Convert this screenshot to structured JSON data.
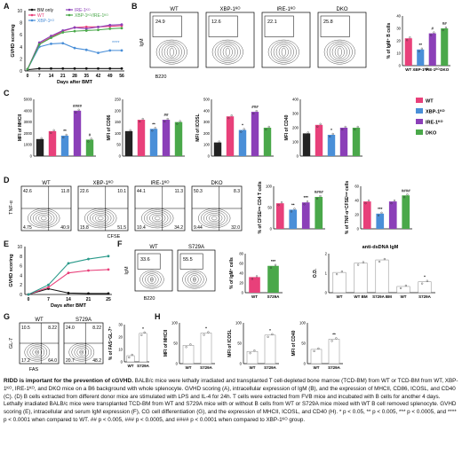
{
  "panels": {
    "A": {
      "letter": "A",
      "ylabel": "GVHD scoring",
      "xlabel": "Days after BMT",
      "legend": [
        "BM only",
        "WT",
        "XBP-1ᴷᴼ",
        "IRE-1ᴷᴼ",
        "XBP-1ᴷᴼ/IRE-1ᴷᴼ"
      ],
      "sig": "****",
      "chart_data": {
        "type": "line",
        "x": [
          0,
          7,
          14,
          21,
          28,
          35,
          42,
          49,
          56
        ],
        "ylim": [
          0,
          10
        ],
        "series": [
          {
            "name": "BM only",
            "values": [
              0.2,
              0.4,
              0.4,
              0.4,
              0.4,
              0.4,
              0.4,
              0.4,
              0.4
            ],
            "color": "#111111"
          },
          {
            "name": "WT",
            "values": [
              0.3,
              4.5,
              5.6,
              6.6,
              7.2,
              7.3,
              7.3,
              7.4,
              7.5
            ],
            "color": "#e8407a"
          },
          {
            "name": "XBP-1ᴷᴼ",
            "values": [
              0.3,
              4.0,
              4.5,
              4.6,
              3.8,
              3.5,
              3.0,
              3.4,
              3.4
            ],
            "color": "#4a8fd8"
          },
          {
            "name": "IRE-1ᴷᴼ",
            "values": [
              0.3,
              4.7,
              5.8,
              6.7,
              7.2,
              7.0,
              7.3,
              7.6,
              7.7
            ],
            "color": "#8b3fb8"
          },
          {
            "name": "XBP-1ᴷᴼ/IRE-1ᴷᴼ",
            "values": [
              0.3,
              4.4,
              5.5,
              6.4,
              6.6,
              6.7,
              6.8,
              7.0,
              7.1
            ],
            "color": "#4aa84a"
          }
        ]
      }
    },
    "B": {
      "letter": "B",
      "groups": [
        "WT",
        "XBP-1ᴷᴼ",
        "IRE-1ᴷᴼ",
        "DKO"
      ],
      "flow_values": [
        "24.9",
        "12.6",
        "22.1",
        "25.8"
      ],
      "yaxis": "IgM",
      "xaxis": "B220",
      "ylabel": "% of IgM⁺ B cells",
      "chart_data": {
        "type": "bar",
        "categories": [
          "WT",
          "XBP-1ᴷᴼ",
          "IRE-1ᴷᴼ",
          "DKO"
        ],
        "values": [
          22,
          13,
          26,
          30
        ],
        "ylim": [
          0,
          40
        ],
        "sig": [
          "",
          "**",
          "#",
          "##"
        ]
      }
    },
    "C": {
      "letter": "C",
      "legend": [
        "WT",
        "XBP-1ᴷᴼ",
        "IRE-1ᴷᴼ",
        "DKO"
      ],
      "charts": [
        {
          "ylabel": "MFI of MHCII",
          "ylim": [
            0,
            5000
          ],
          "ticks": [
            "0",
            "1000",
            "2000",
            "3000",
            "4000",
            "5000"
          ],
          "values": [
            1500,
            2200,
            1800,
            4000,
            1450
          ],
          "sig": [
            "",
            "",
            "**",
            "####",
            "#"
          ]
        },
        {
          "ylabel": "MFI of CD86",
          "ylim": [
            0,
            250
          ],
          "ticks": [
            "0",
            "50",
            "100",
            "150",
            "200",
            "250"
          ],
          "values": [
            110,
            160,
            120,
            160,
            150
          ],
          "sig": [
            "",
            "",
            "**",
            "##",
            ""
          ]
        },
        {
          "ylabel": "MFI of ICOSL",
          "ylim": [
            0,
            500
          ],
          "ticks": [
            "0",
            "100",
            "200",
            "300",
            "400",
            "500"
          ],
          "values": [
            120,
            350,
            230,
            390,
            250
          ],
          "sig": [
            "",
            "",
            "*",
            "###",
            ""
          ]
        },
        {
          "ylabel": "MFI of CD40",
          "ylim": [
            0,
            400
          ],
          "ticks": [
            "0",
            "100",
            "200",
            "300",
            "400"
          ],
          "values": [
            160,
            220,
            150,
            200,
            200
          ],
          "sig": [
            "",
            "",
            "*",
            "",
            ""
          ]
        }
      ]
    },
    "D": {
      "letter": "D",
      "groups": [
        "WT",
        "XBP-1ᴷᴼ",
        "IRE-1ᴷᴼ",
        "DKO"
      ],
      "quadrants": [
        [
          "42.6",
          "11.8",
          "4.75",
          "40.9"
        ],
        [
          "22.6",
          "10.1",
          "15.8",
          "51.5"
        ],
        [
          "44.1",
          "11.3",
          "10.4",
          "34.2"
        ],
        [
          "50.3",
          "8.3",
          "9.44",
          "32.0"
        ]
      ],
      "yaxis": "TNF-α",
      "xaxis": "CFSE",
      "bar1": {
        "ylabel": "% of CFSEˡᵒʷ CD4 T cells",
        "values": [
          60,
          45,
          62,
          75
        ],
        "sig": [
          "",
          "**",
          "***",
          "####"
        ],
        "ylim": [
          0,
          100
        ]
      },
      "bar2": {
        "ylabel": "% of TNF-α⁺CFSEˡᵒʷ cells",
        "values": [
          45,
          25,
          45,
          55
        ],
        "sig": [
          "",
          "***",
          "",
          "####"
        ],
        "ylim": [
          0,
          70
        ]
      }
    },
    "E": {
      "letter": "E",
      "ylabel": "GVHD scoring",
      "xlabel": "Days after BMT",
      "chart_data": {
        "type": "line",
        "x": [
          0,
          7,
          14,
          21,
          25
        ],
        "ylim": [
          0,
          10
        ],
        "series": [
          {
            "values": [
              0,
              1.2,
              0.3,
              0.2,
              0.2
            ],
            "color": "#111111"
          },
          {
            "values": [
              0,
              1.5,
              4.5,
              5.0,
              5.2
            ],
            "color": "#e8407a"
          },
          {
            "values": [
              0,
              2.0,
              6.5,
              7.4,
              8.0
            ],
            "color": "#2a9a8a"
          }
        ]
      }
    },
    "F": {
      "letter": "F",
      "groups": [
        "WT",
        "S729A"
      ],
      "flow_values": [
        "33.6",
        "55.5"
      ],
      "yaxis": "IgM",
      "xaxis": "B220",
      "bar": {
        "ylabel": "% of IgM⁺ cells",
        "categories": [
          "WT",
          "S729A"
        ],
        "values": [
          32,
          55
        ],
        "sig": "***"
      },
      "bar2": {
        "title": "anti-dsDNA IgM",
        "ylabel": "O.D.",
        "categories": [
          "WT",
          "WT BM",
          "S729A BM",
          "WT",
          "S729A"
        ],
        "values": [
          1.3,
          1.9,
          2.1,
          0.4,
          0.7
        ],
        "sig": "*"
      }
    },
    "G": {
      "letter": "G",
      "groups": [
        "WT",
        "S729A"
      ],
      "quadrants": [
        [
          "10.5",
          "8.22",
          "17.2",
          "64.0"
        ],
        [
          "24.0",
          "8.22",
          "20.7",
          "48.2"
        ]
      ],
      "yaxis": "GL-7",
      "xaxis": "FAS",
      "bar": {
        "ylabel": "% of FAS⁺GL-7⁺",
        "categories": [
          "WT",
          "S729A"
        ],
        "values": [
          5,
          23
        ],
        "sig": "*"
      }
    },
    "H": {
      "letter": "H",
      "charts": [
        {
          "ylabel": "MFI of MHCII",
          "categories": [
            "WT",
            "S729A"
          ],
          "values": [
            45,
            75
          ],
          "sig": "*"
        },
        {
          "ylabel": "MFI of ICOSL",
          "categories": [
            "WT",
            "S729A"
          ],
          "values": [
            30,
            70
          ],
          "sig": "*"
        },
        {
          "ylabel": "MFI of CD40",
          "categories": [
            "WT",
            "S729A"
          ],
          "values": [
            35,
            60
          ],
          "sig": "**"
        }
      ]
    }
  },
  "caption": {
    "title": "RIDD is important for the prevention of cGVHD.",
    "body": " BALB/c mice were lethally irradiated and transplanted T cell-depleted bone marrow (TCD-BM) from WT or TCD-BM from WT, XBP-1ᴷᴼ, IRE-1ᴷᴼ, and DKO mice on a B6 background with whole splenocyte. GVHD scoring (A), intracellular expression of IgM (B), and the expression of MHCII, CD86, ICOSL, and CD40 (C). (D) B cells extracted from different donor mice are stimulated with LPS and IL-4 for 24h. T cells were extracted from FVB mice and incubated with B cells for another 4 days. Lethally irradiated BALB/c mice were transplanted TCD-BM from WT and S729A mice with or without B cells from WT or S729A mice mixed with WT B cell removed splenocyte. GVHD scoring (E), intracellular and serum IgM expression (F), CG cell differentiation (G), and the expression of MHCII, ICOSL, and CD40 (H). * p < 0.05, ** p < 0.005, *** p < 0.0005, and **** p < 0.0001 when compared to WT. ## p < 0.005, ### p < 0.0005, and #### p < 0.0001 when compared to XBP-1ᴷᴼ group."
  }
}
